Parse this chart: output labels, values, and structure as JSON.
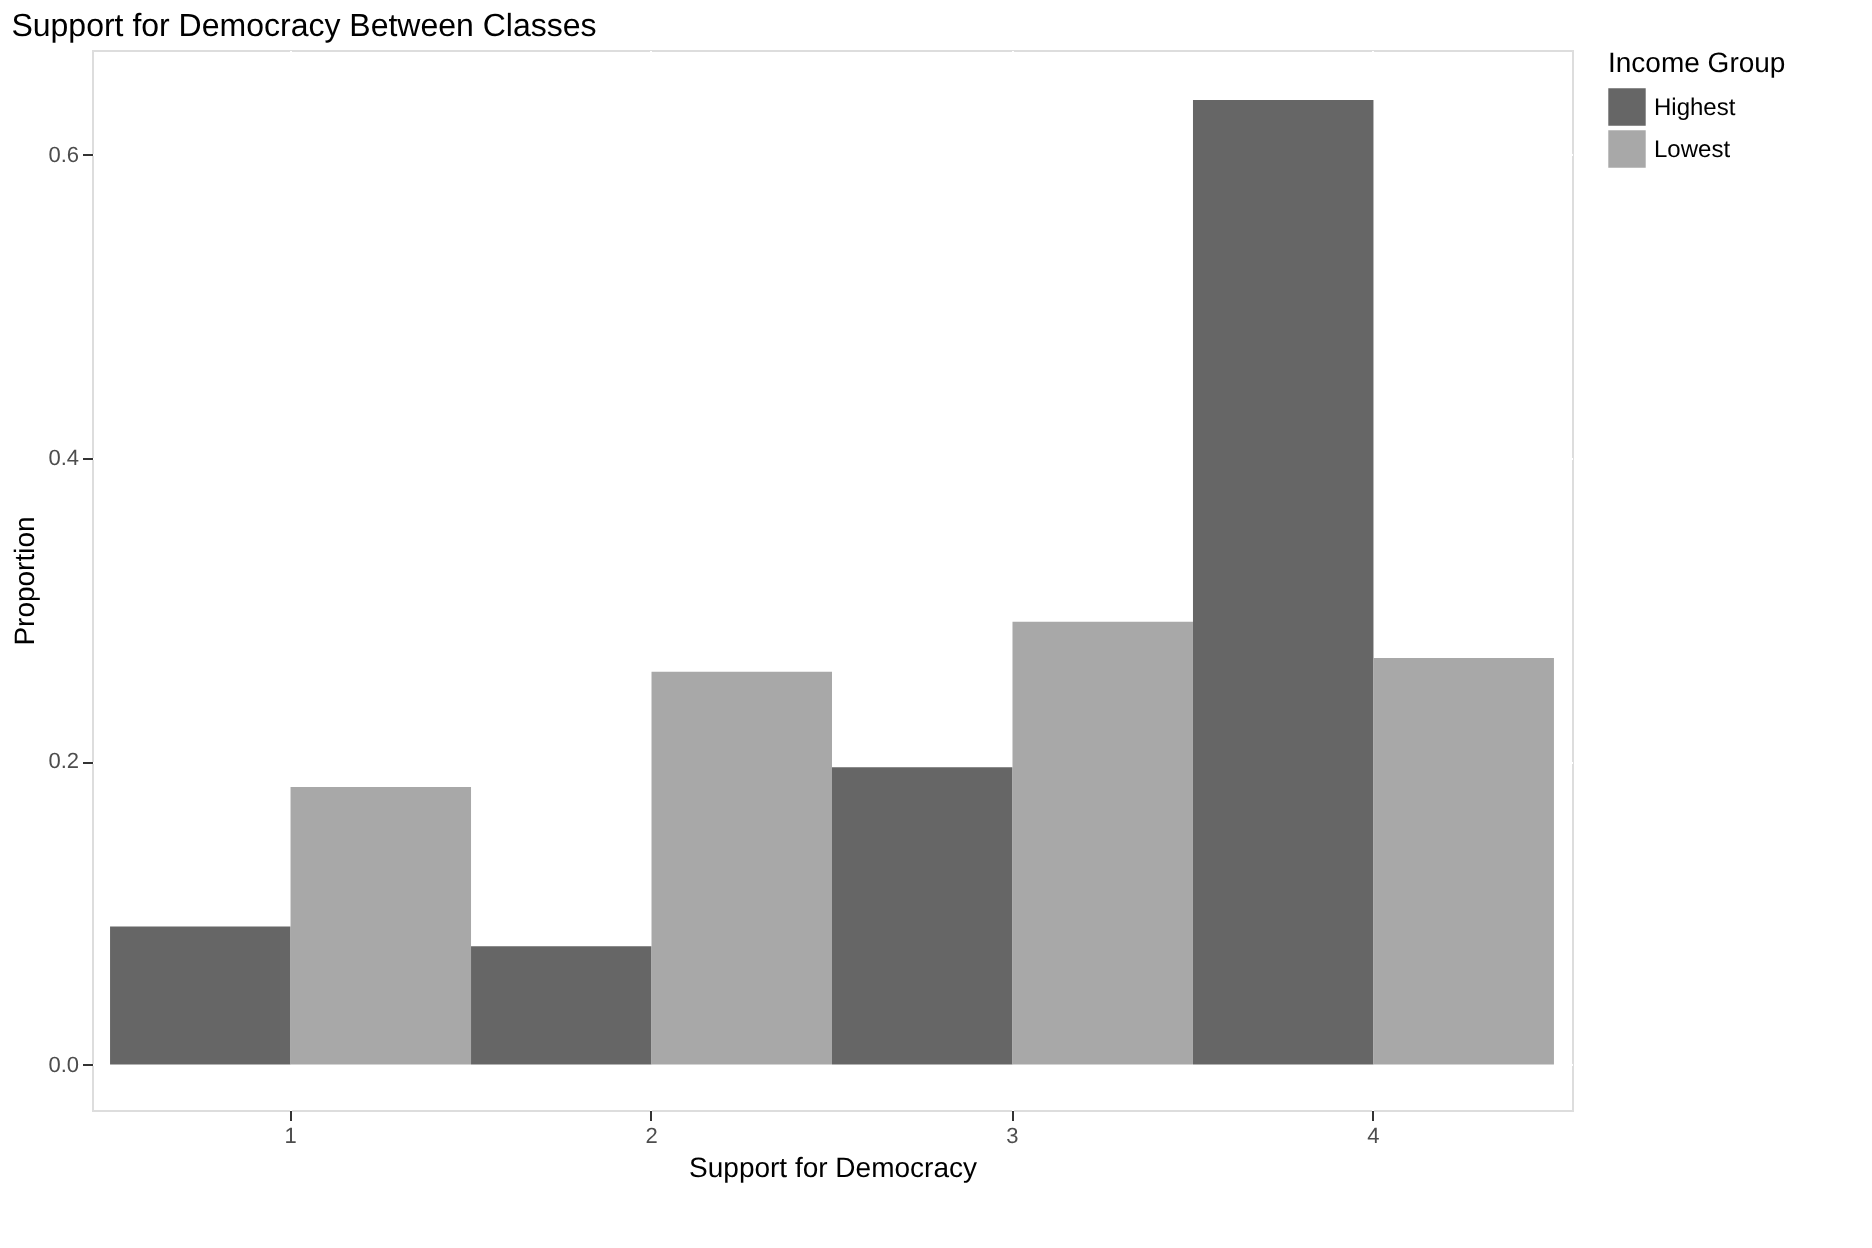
{
  "chart_data": {
    "type": "bar",
    "title": "Support for Democracy Between Classes",
    "xlabel": "Support for Democracy",
    "ylabel": "Proportion",
    "legend_title": "Income Group",
    "categories": [
      "1",
      "2",
      "3",
      "4"
    ],
    "series": [
      {
        "name": "Highest",
        "color": "#666666",
        "values": [
          0.091,
          0.078,
          0.196,
          0.636
        ]
      },
      {
        "name": "Lowest",
        "color": "#a8a8a8",
        "values": [
          0.183,
          0.259,
          0.292,
          0.268
        ]
      }
    ],
    "ylim": [
      -0.03,
      0.669
    ],
    "yticks": [
      {
        "value": 0,
        "label": "0.0"
      },
      0.2,
      0.4,
      0.6
    ],
    "grid": true,
    "legend": "right"
  }
}
